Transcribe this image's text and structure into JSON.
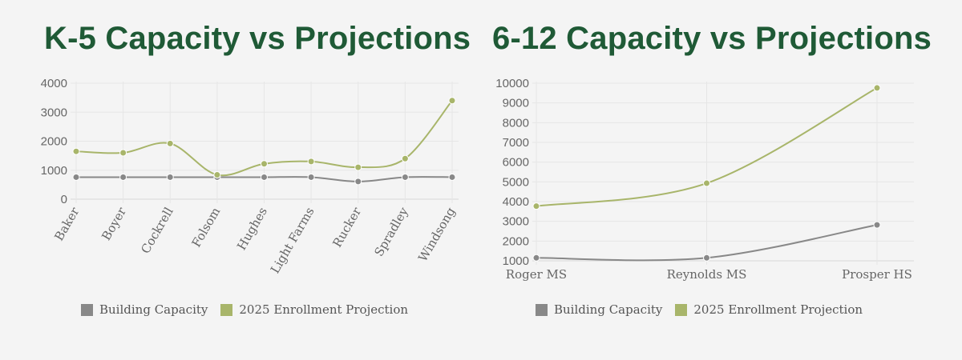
{
  "colors": {
    "capacity": "#888888",
    "projection": "#a8b56a",
    "title": "#1f5a36"
  },
  "chart_data": [
    {
      "type": "line",
      "title": "K-5 Capacity vs Projections",
      "categories": [
        "Baker",
        "Boyer",
        "Cockrell",
        "Folsom",
        "Hughes",
        "Light Farms",
        "Rucker",
        "Spradley",
        "Windsong"
      ],
      "ylim": [
        0,
        4000
      ],
      "yticks": [
        "0",
        "1000",
        "2000",
        "3000",
        "4000"
      ],
      "grid": true,
      "legend": "bottom",
      "series": [
        {
          "name": "Building Capacity",
          "values": [
            760,
            760,
            760,
            760,
            760,
            760,
            610,
            760,
            760
          ]
        },
        {
          "name": "2025 Enrollment Projection",
          "values": [
            1650,
            1600,
            1920,
            840,
            1220,
            1300,
            1100,
            1400,
            3400
          ]
        }
      ]
    },
    {
      "type": "line",
      "title": "6-12 Capacity vs Projections",
      "categories": [
        "Roger MS",
        "Reynolds MS",
        "Prosper HS"
      ],
      "ylim": [
        1000,
        10000
      ],
      "yticks": [
        "1000",
        "2000",
        "3000",
        "4000",
        "5000",
        "6000",
        "7000",
        "8000",
        "9000",
        "10000"
      ],
      "grid": true,
      "legend": "bottom",
      "series": [
        {
          "name": "Building Capacity",
          "values": [
            1150,
            1150,
            2820
          ]
        },
        {
          "name": "2025 Enrollment Projection",
          "values": [
            3770,
            4930,
            9760
          ]
        }
      ]
    }
  ]
}
